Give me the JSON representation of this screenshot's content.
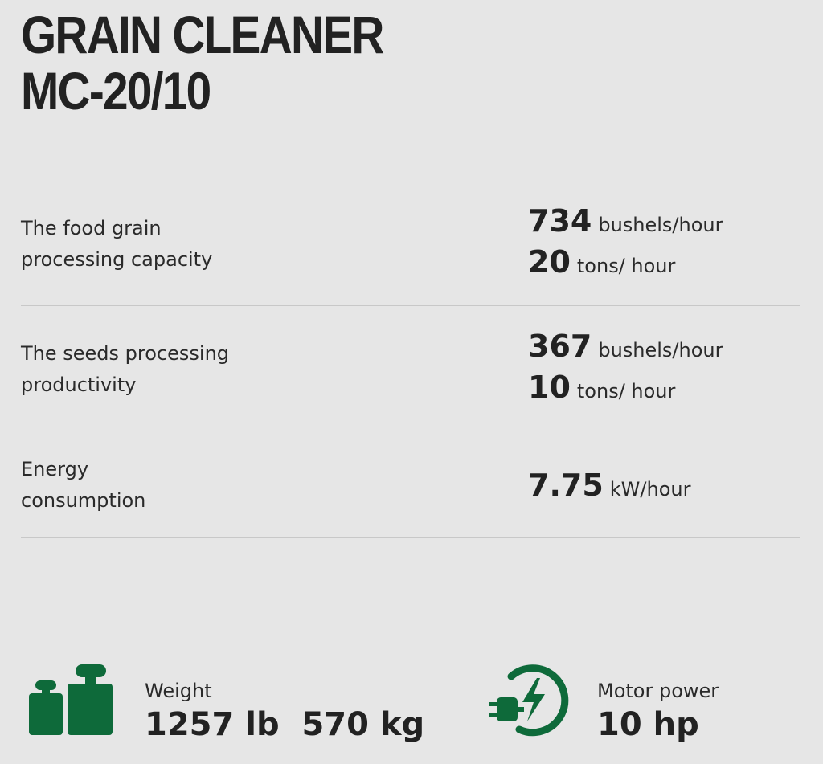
{
  "header": {
    "title": [
      "GRAIN CLEANER",
      "MC-20/10"
    ]
  },
  "specs": [
    {
      "label": "The food grain processing capacity",
      "values": [
        {
          "number": 734,
          "unit": "bushels/hour"
        },
        {
          "number": 20,
          "unit": "tons/ hour"
        }
      ]
    },
    {
      "label": "The seeds processing productivity",
      "values": [
        {
          "number": 367,
          "unit": "bushels/hour"
        },
        {
          "number": 10,
          "unit": "tons/ hour"
        }
      ]
    },
    {
      "label": "Energy consumption",
      "values": [
        {
          "number": 7.75,
          "unit": "kW/hour"
        }
      ]
    }
  ],
  "stats": [
    {
      "label": "Weight",
      "values": [
        {
          "number": 1257,
          "unit": "lb"
        },
        {
          "number": 570,
          "unit": "kg"
        }
      ]
    },
    {
      "label": "Motor power",
      "values": [
        {
          "number": 10,
          "unit": "hp"
        }
      ]
    }
  ]
}
